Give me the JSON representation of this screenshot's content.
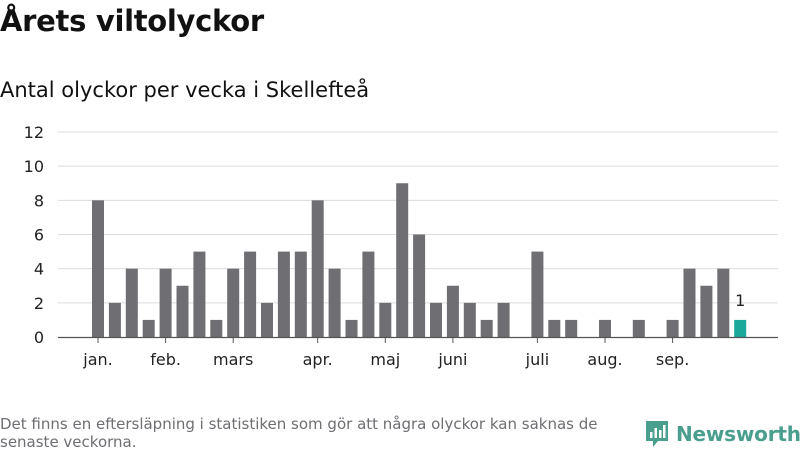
{
  "title": "Årets viltolyckor",
  "subtitle": "Antal olyckor per vecka i Skellefteå",
  "footnote": "Det finns en eftersläpning i statistiken som gör att några olyckor kan saknas de senaste veckorna.",
  "brand": {
    "name": "Newsworthy",
    "icon": "newsworthy-logo-icon",
    "color": "#4a9e8e"
  },
  "chart_data": {
    "type": "bar",
    "title": "",
    "xlabel": "",
    "ylabel": "",
    "ylim": [
      0,
      12
    ],
    "yticks": [
      0,
      2,
      4,
      6,
      8,
      10,
      12
    ],
    "grid": true,
    "bar_color": "#6e6e73",
    "highlight_color": "#1aa89a",
    "weeks": [
      1,
      2,
      3,
      4,
      5,
      6,
      7,
      8,
      9,
      10,
      11,
      12,
      13,
      14,
      15,
      16,
      17,
      18,
      19,
      20,
      21,
      22,
      23,
      24,
      25,
      26,
      27,
      28,
      29,
      30,
      31,
      32,
      33,
      34,
      35,
      36,
      37,
      38,
      39
    ],
    "values": [
      8,
      2,
      4,
      1,
      4,
      3,
      5,
      1,
      4,
      5,
      2,
      5,
      5,
      8,
      4,
      1,
      5,
      2,
      9,
      6,
      2,
      3,
      2,
      1,
      2,
      0,
      5,
      1,
      1,
      0,
      1,
      0,
      1,
      0,
      1,
      4,
      3,
      4,
      1
    ],
    "highlight_index": 38,
    "highlight_label": "1",
    "month_labels": [
      {
        "label": "jan.",
        "week": 1
      },
      {
        "label": "feb.",
        "week": 5
      },
      {
        "label": "mars",
        "week": 9
      },
      {
        "label": "apr.",
        "week": 14
      },
      {
        "label": "maj",
        "week": 18
      },
      {
        "label": "juni",
        "week": 22
      },
      {
        "label": "juli",
        "week": 27
      },
      {
        "label": "aug.",
        "week": 31
      },
      {
        "label": "sep.",
        "week": 35
      }
    ]
  }
}
